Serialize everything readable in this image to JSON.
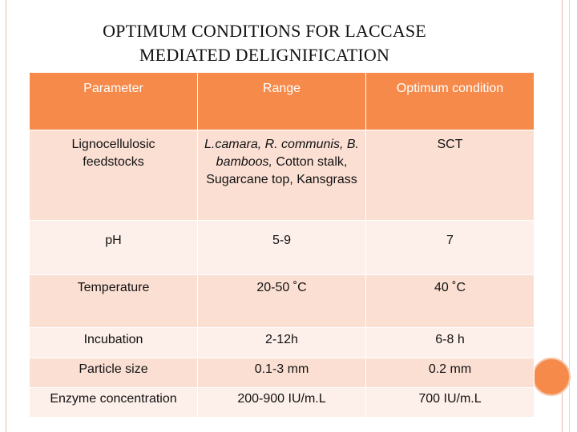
{
  "title": {
    "line1": "OPTIMUM CONDITIONS FOR LACCASE",
    "line2": "MEDIATED DELIGNIFICATION"
  },
  "table": {
    "headers": [
      "Parameter",
      "Range",
      "Optimum condition"
    ],
    "rows": [
      {
        "parameter": [
          "Lignocellulosic",
          "feedstocks"
        ],
        "range_italic": "L.camara, R. communis, B. bamboos,",
        "range_plain": " Cotton stalk, Sugarcane top, Kansgrass",
        "optimum": "SCT"
      },
      {
        "parameter": "pH",
        "range": "5-9",
        "optimum": "7"
      },
      {
        "parameter": "Temperature",
        "range": "20-50 ˚C",
        "optimum": "40 ˚C"
      },
      {
        "parameter": "Incubation",
        "range": "2-12h",
        "optimum": "6-8 h"
      },
      {
        "parameter": "Particle size",
        "range": "0.1-3 mm",
        "optimum": "0.2 mm"
      },
      {
        "parameter": "Enzyme concentration",
        "range": "200-900 IU/m.L",
        "optimum": "700 IU/m.L"
      }
    ]
  },
  "colors": {
    "header_bg": "#f58a4b",
    "row_dark": "#fbdfd3",
    "row_light": "#fdefe9"
  }
}
